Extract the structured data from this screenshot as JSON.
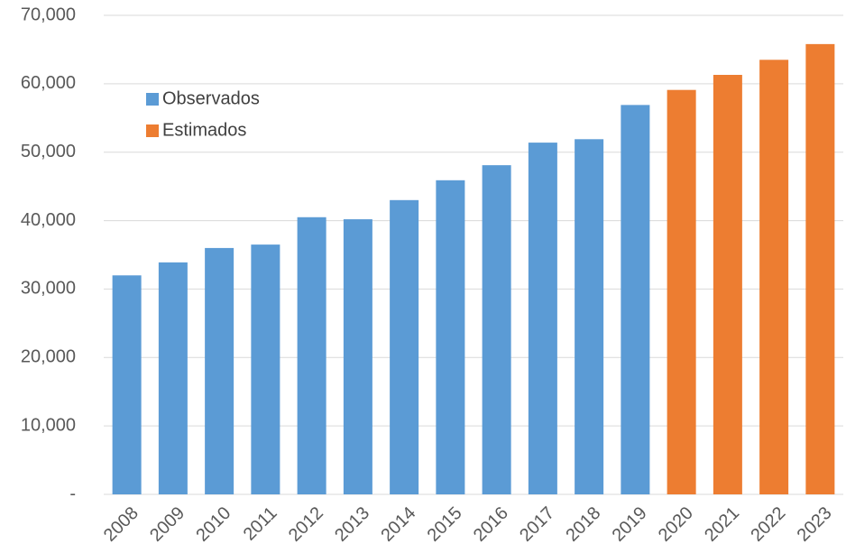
{
  "chart_data": {
    "type": "bar",
    "categories": [
      "2008",
      "2009",
      "2010",
      "2011",
      "2012",
      "2013",
      "2014",
      "2015",
      "2016",
      "2017",
      "2018",
      "2019",
      "2020",
      "2021",
      "2022",
      "2023"
    ],
    "series": [
      {
        "name": "Observados",
        "color": "#5b9bd5",
        "values": [
          32000,
          33900,
          36000,
          36500,
          40500,
          40200,
          43000,
          45900,
          48100,
          51400,
          51900,
          56900,
          null,
          null,
          null,
          null
        ]
      },
      {
        "name": "Estimados",
        "color": "#ed7d31",
        "values": [
          null,
          null,
          null,
          null,
          null,
          null,
          null,
          null,
          null,
          null,
          null,
          null,
          59100,
          61300,
          63500,
          65800
        ]
      }
    ],
    "ylim": [
      0,
      70000
    ],
    "yticks": [
      {
        "value": 0,
        "label": "-"
      },
      {
        "value": 10000,
        "label": "10,000"
      },
      {
        "value": 20000,
        "label": "20,000"
      },
      {
        "value": 30000,
        "label": "30,000"
      },
      {
        "value": 40000,
        "label": "40,000"
      },
      {
        "value": 50000,
        "label": "50,000"
      },
      {
        "value": 60000,
        "label": "60,000"
      },
      {
        "value": 70000,
        "label": "70,000"
      }
    ],
    "grid": true
  }
}
